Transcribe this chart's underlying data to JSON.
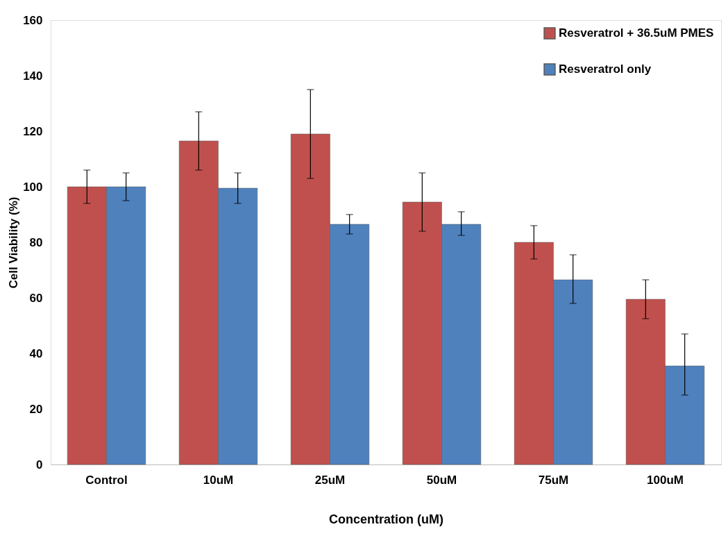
{
  "chart_data": {
    "type": "bar",
    "xlabel": "Concentration (uM)",
    "ylabel": "Cell Viability (%)",
    "categories": [
      "Control",
      "10uM",
      "25uM",
      "50uM",
      "75uM",
      "100uM"
    ],
    "series": [
      {
        "name": "Resveratrol + 36.5uM PMES",
        "color": "#c0504d",
        "values": [
          100,
          116.5,
          119,
          94.5,
          80,
          59.5
        ],
        "errors": [
          [
            94,
            106
          ],
          [
            106,
            127
          ],
          [
            103,
            135
          ],
          [
            84,
            105
          ],
          [
            74,
            86
          ],
          [
            52.5,
            66.5
          ]
        ]
      },
      {
        "name": "Resveratrol only",
        "color": "#4f81bd",
        "values": [
          100,
          99.5,
          86.5,
          86.5,
          66.5,
          35.5
        ],
        "errors": [
          [
            95,
            105
          ],
          [
            94,
            105
          ],
          [
            83,
            90
          ],
          [
            82.5,
            91
          ],
          [
            58,
            75.5
          ],
          [
            25,
            47
          ]
        ]
      }
    ],
    "ylim": [
      0,
      160
    ],
    "yticks": [
      0,
      20,
      40,
      60,
      80,
      100,
      120,
      140,
      160
    ],
    "grid": false,
    "legend": "top right"
  }
}
